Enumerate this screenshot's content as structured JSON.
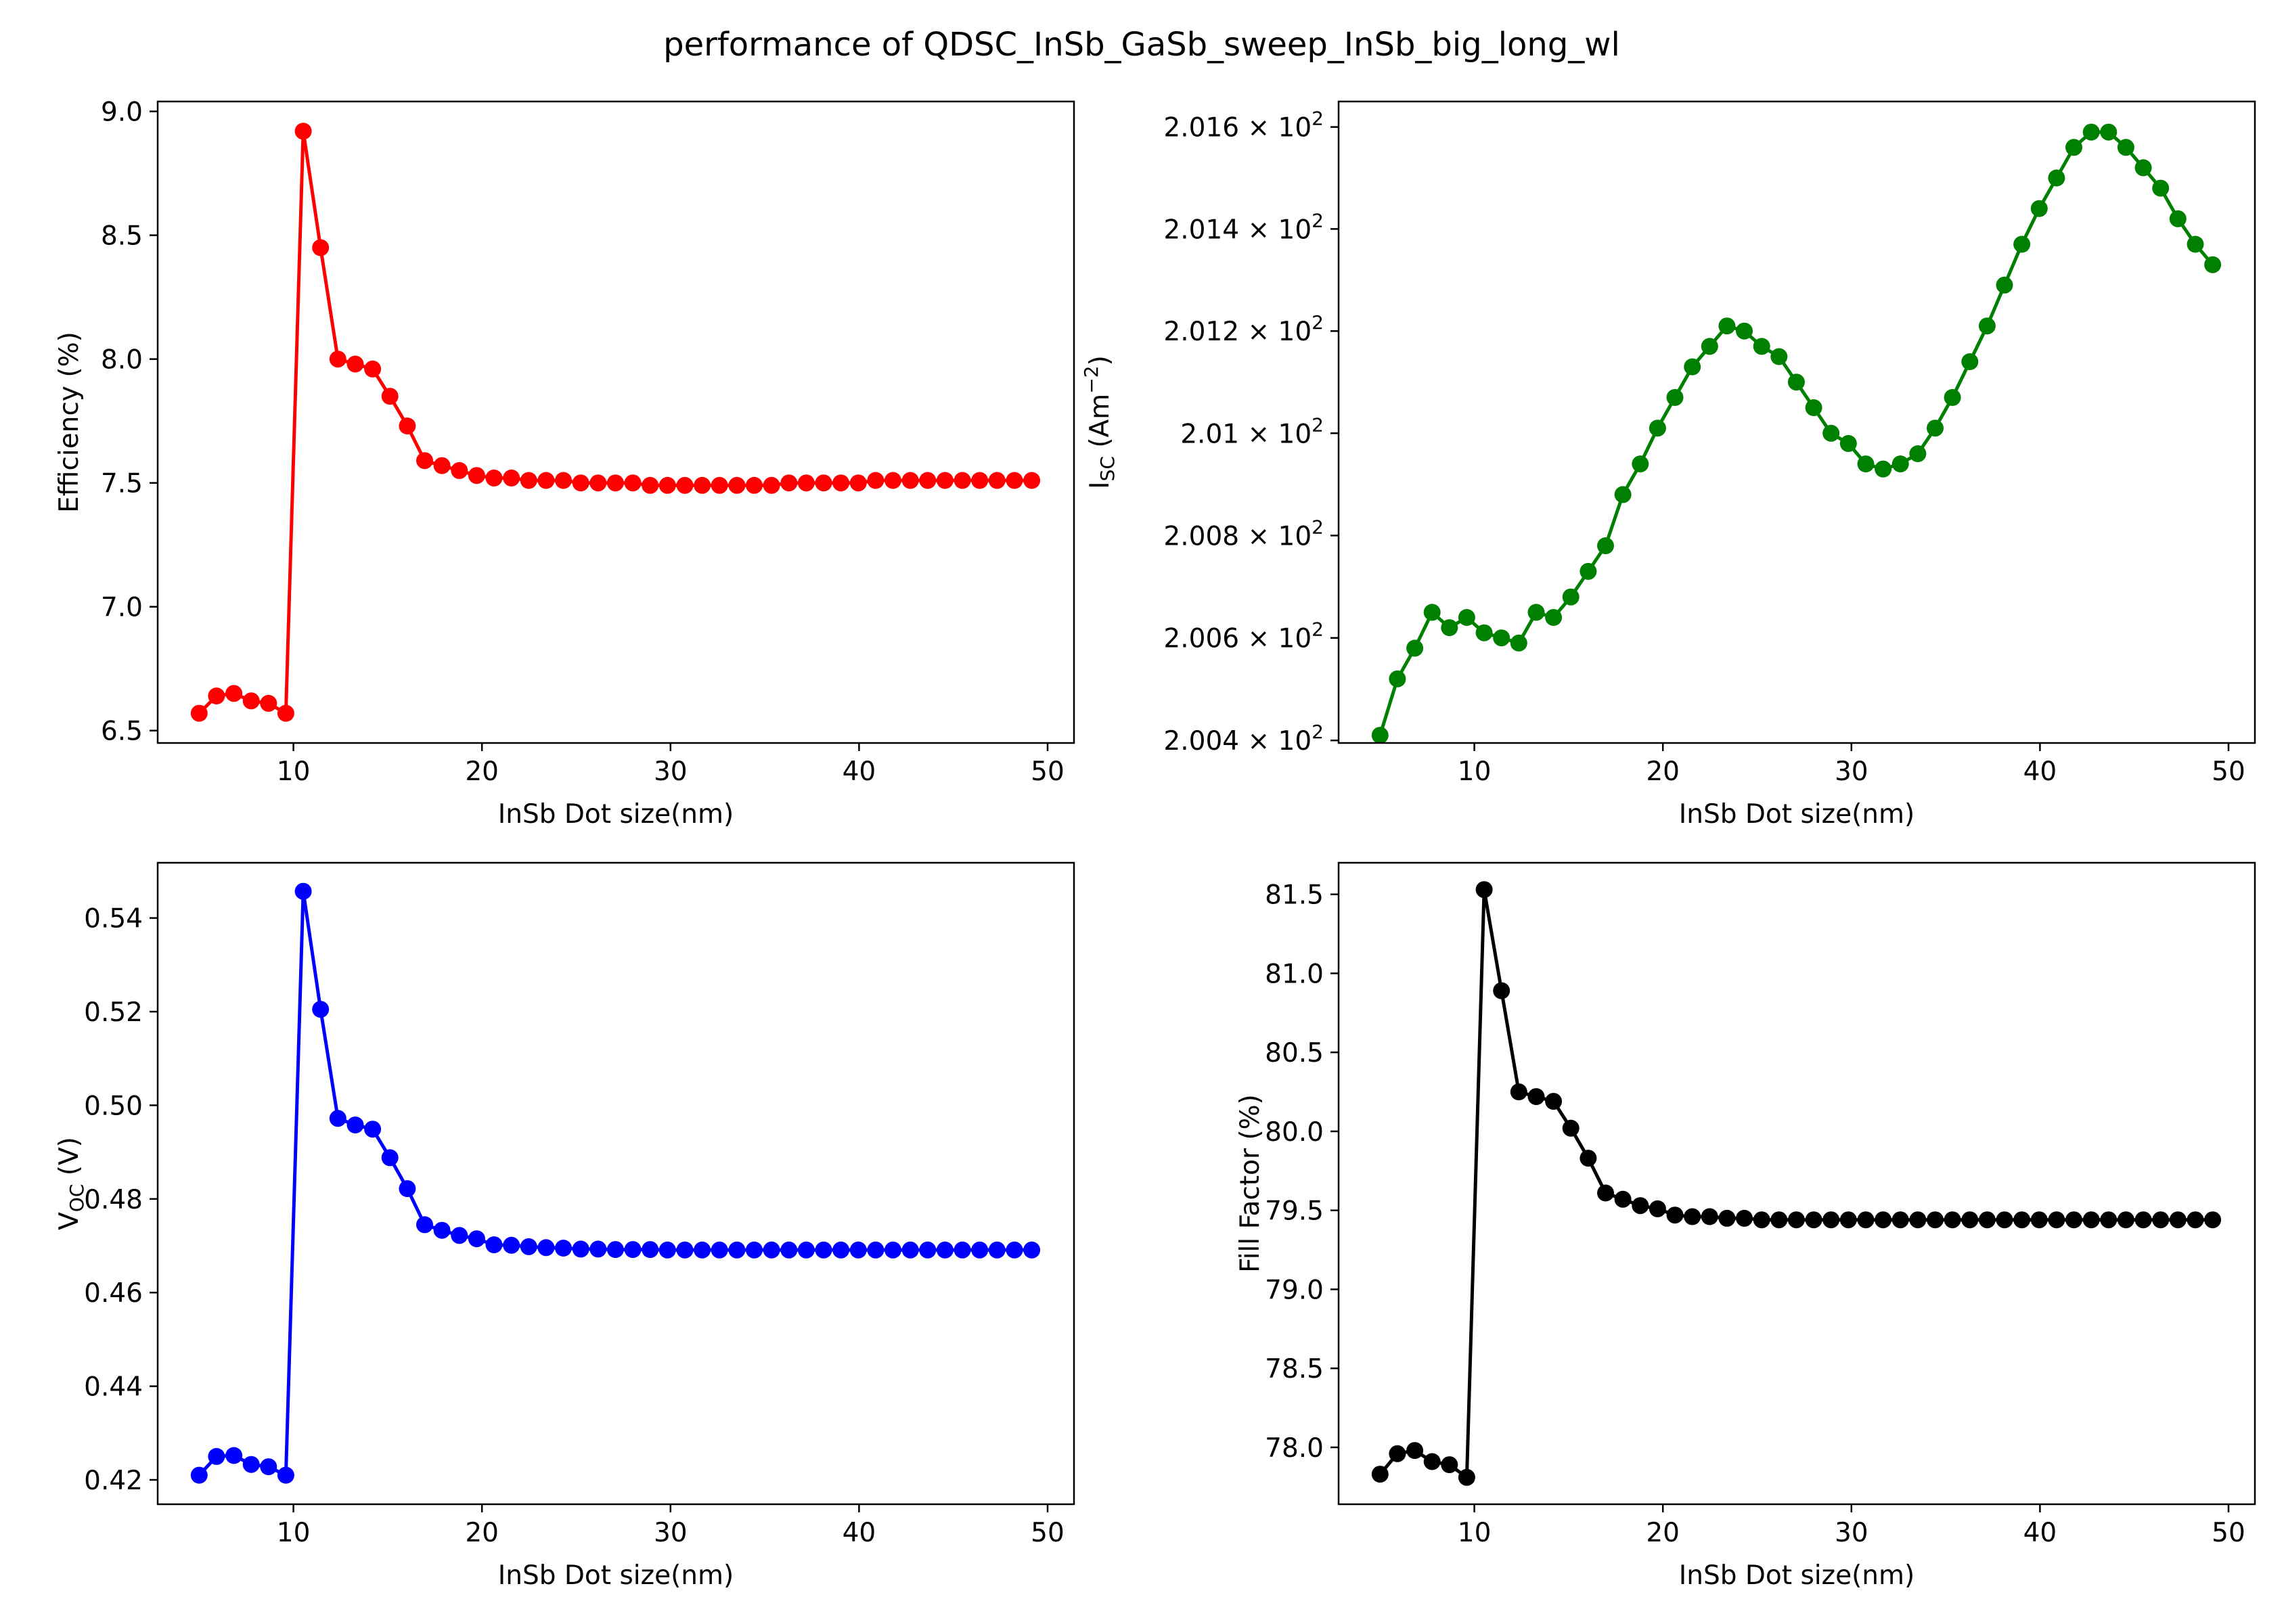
{
  "figure": {
    "title": "performance of QDSC_InSb_GaSb_sweep_InSb_big_long_wl"
  },
  "chart_data": [
    {
      "type": "line",
      "id": "efficiency",
      "title": "",
      "xlabel": "InSb Dot size(nm)",
      "ylabel": "Efficiency (%)",
      "color": "#ff0000",
      "marker": "circle",
      "xlim": [
        2.8,
        51.4
      ],
      "ylim": [
        6.45,
        9.04
      ],
      "xticks": [
        10,
        20,
        30,
        40,
        50
      ],
      "yticks": [
        6.5,
        7.0,
        7.5,
        8.0,
        8.5,
        9.0
      ],
      "ytick_labels": [
        "6.5",
        "7.0",
        "7.5",
        "8.0",
        "8.5",
        "9.0"
      ],
      "grid": false,
      "x": [
        5.0,
        5.92,
        6.84,
        7.76,
        8.68,
        9.6,
        10.52,
        11.44,
        12.36,
        13.28,
        14.2,
        15.12,
        16.04,
        16.96,
        17.88,
        18.8,
        19.72,
        20.64,
        21.56,
        22.48,
        23.4,
        24.32,
        25.24,
        26.16,
        27.08,
        28.0,
        28.92,
        29.84,
        30.76,
        31.68,
        32.6,
        33.52,
        34.44,
        35.36,
        36.28,
        37.2,
        38.12,
        39.04,
        39.96,
        40.88,
        41.8,
        42.72,
        43.64,
        44.56,
        45.48,
        46.4,
        47.32,
        48.24,
        49.16
      ],
      "y": [
        6.57,
        6.64,
        6.65,
        6.62,
        6.61,
        6.57,
        8.92,
        8.45,
        8.0,
        7.98,
        7.96,
        7.85,
        7.73,
        7.59,
        7.57,
        7.55,
        7.53,
        7.52,
        7.52,
        7.51,
        7.51,
        7.51,
        7.5,
        7.5,
        7.5,
        7.5,
        7.49,
        7.49,
        7.49,
        7.49,
        7.49,
        7.49,
        7.49,
        7.49,
        7.5,
        7.5,
        7.5,
        7.5,
        7.5,
        7.51,
        7.51,
        7.51,
        7.51,
        7.51,
        7.51,
        7.51,
        7.51,
        7.51,
        7.51
      ]
    },
    {
      "type": "line",
      "id": "isc",
      "title": "",
      "xlabel": "InSb Dot size(nm)",
      "ylabel": "I_SC (Am^-2)",
      "ylabel_base": "I",
      "ylabel_sub": "SC",
      "ylabel_unit_pre": " (Am",
      "ylabel_sup": "−2",
      "ylabel_unit_post": ")",
      "color": "#008000",
      "marker": "circle",
      "yscale": "log",
      "xlim": [
        2.8,
        51.4
      ],
      "ylim": [
        200.395,
        201.65
      ],
      "xticks": [
        10,
        20,
        30,
        40,
        50
      ],
      "yticks": [
        200.4,
        200.6,
        200.8,
        201.0,
        201.2,
        201.4,
        201.6
      ],
      "ytick_mantissas": [
        "2.004",
        "2.006",
        "2.008",
        "2.01",
        "2.012",
        "2.014",
        "2.016"
      ],
      "ytick_times": "×",
      "ytick_base": "10",
      "ytick_exp": "2",
      "grid": false,
      "x": [
        5.0,
        5.92,
        6.84,
        7.76,
        8.68,
        9.6,
        10.52,
        11.44,
        12.36,
        13.28,
        14.2,
        15.12,
        16.04,
        16.96,
        17.88,
        18.8,
        19.72,
        20.64,
        21.56,
        22.48,
        23.4,
        24.32,
        25.24,
        26.16,
        27.08,
        28.0,
        28.92,
        29.84,
        30.76,
        31.68,
        32.6,
        33.52,
        34.44,
        35.36,
        36.28,
        37.2,
        38.12,
        39.04,
        39.96,
        40.88,
        41.8,
        42.72,
        43.64,
        44.56,
        45.48,
        46.4,
        47.32,
        48.24,
        49.16
      ],
      "y": [
        200.41,
        200.52,
        200.58,
        200.65,
        200.62,
        200.64,
        200.61,
        200.6,
        200.59,
        200.65,
        200.64,
        200.68,
        200.73,
        200.78,
        200.88,
        200.94,
        201.01,
        201.07,
        201.13,
        201.17,
        201.21,
        201.2,
        201.17,
        201.15,
        201.1,
        201.05,
        201.0,
        200.98,
        200.94,
        200.93,
        200.94,
        200.96,
        201.01,
        201.07,
        201.14,
        201.21,
        201.29,
        201.37,
        201.44,
        201.5,
        201.56,
        201.59,
        201.59,
        201.56,
        201.52,
        201.48,
        201.42,
        201.37,
        201.33
      ]
    },
    {
      "type": "line",
      "id": "voc",
      "title": "",
      "xlabel": "InSb Dot size(nm)",
      "ylabel": "V_OC (V)",
      "ylabel_base": "V",
      "ylabel_sub": "OC",
      "ylabel_unit_post": " (V)",
      "color": "#0000ff",
      "marker": "circle",
      "xlim": [
        2.8,
        51.4
      ],
      "ylim": [
        0.4148,
        0.5518
      ],
      "xticks": [
        10,
        20,
        30,
        40,
        50
      ],
      "yticks": [
        0.42,
        0.44,
        0.46,
        0.48,
        0.5,
        0.52,
        0.54
      ],
      "ytick_labels": [
        "0.42",
        "0.44",
        "0.46",
        "0.48",
        "0.50",
        "0.52",
        "0.54"
      ],
      "grid": false,
      "x": [
        5.0,
        5.92,
        6.84,
        7.76,
        8.68,
        9.6,
        10.52,
        11.44,
        12.36,
        13.28,
        14.2,
        15.12,
        16.04,
        16.96,
        17.88,
        18.8,
        19.72,
        20.64,
        21.56,
        22.48,
        23.4,
        24.32,
        25.24,
        26.16,
        27.08,
        28.0,
        28.92,
        29.84,
        30.76,
        31.68,
        32.6,
        33.52,
        34.44,
        35.36,
        36.28,
        37.2,
        38.12,
        39.04,
        39.96,
        40.88,
        41.8,
        42.72,
        43.64,
        44.56,
        45.48,
        46.4,
        47.32,
        48.24,
        49.16
      ],
      "y": [
        0.421,
        0.425,
        0.4252,
        0.4233,
        0.4228,
        0.421,
        0.5457,
        0.5205,
        0.4972,
        0.4958,
        0.4949,
        0.4888,
        0.4822,
        0.4745,
        0.4733,
        0.4722,
        0.4715,
        0.4702,
        0.4701,
        0.4698,
        0.4696,
        0.4695,
        0.4693,
        0.4693,
        0.4692,
        0.4692,
        0.4692,
        0.4691,
        0.4691,
        0.4691,
        0.4691,
        0.4691,
        0.4691,
        0.4691,
        0.4691,
        0.4691,
        0.4691,
        0.4691,
        0.4691,
        0.4691,
        0.4691,
        0.4691,
        0.4691,
        0.4691,
        0.4691,
        0.4691,
        0.4691,
        0.4691,
        0.4691
      ]
    },
    {
      "type": "line",
      "id": "fill-factor",
      "title": "",
      "xlabel": "InSb Dot size(nm)",
      "ylabel": "Fill Factor (%)",
      "color": "#000000",
      "marker": "circle",
      "xlim": [
        2.8,
        51.4
      ],
      "ylim": [
        77.64,
        81.7
      ],
      "xticks": [
        10,
        20,
        30,
        40,
        50
      ],
      "yticks": [
        78.0,
        78.5,
        79.0,
        79.5,
        80.0,
        80.5,
        81.0,
        81.5
      ],
      "ytick_labels": [
        "78.0",
        "78.5",
        "79.0",
        "79.5",
        "80.0",
        "80.5",
        "81.0",
        "81.5"
      ],
      "grid": false,
      "x": [
        5.0,
        5.92,
        6.84,
        7.76,
        8.68,
        9.6,
        10.52,
        11.44,
        12.36,
        13.28,
        14.2,
        15.12,
        16.04,
        16.96,
        17.88,
        18.8,
        19.72,
        20.64,
        21.56,
        22.48,
        23.4,
        24.32,
        25.24,
        26.16,
        27.08,
        28.0,
        28.92,
        29.84,
        30.76,
        31.68,
        32.6,
        33.52,
        34.44,
        35.36,
        36.28,
        37.2,
        38.12,
        39.04,
        39.96,
        40.88,
        41.8,
        42.72,
        43.64,
        44.56,
        45.48,
        46.4,
        47.32,
        48.24,
        49.16
      ],
      "y": [
        77.83,
        77.96,
        77.98,
        77.91,
        77.89,
        77.81,
        81.53,
        80.89,
        80.25,
        80.22,
        80.19,
        80.02,
        79.83,
        79.61,
        79.57,
        79.53,
        79.51,
        79.47,
        79.46,
        79.46,
        79.45,
        79.45,
        79.44,
        79.44,
        79.44,
        79.44,
        79.44,
        79.44,
        79.44,
        79.44,
        79.44,
        79.44,
        79.44,
        79.44,
        79.44,
        79.44,
        79.44,
        79.44,
        79.44,
        79.44,
        79.44,
        79.44,
        79.44,
        79.44,
        79.44,
        79.44,
        79.44,
        79.44,
        79.44
      ]
    }
  ]
}
